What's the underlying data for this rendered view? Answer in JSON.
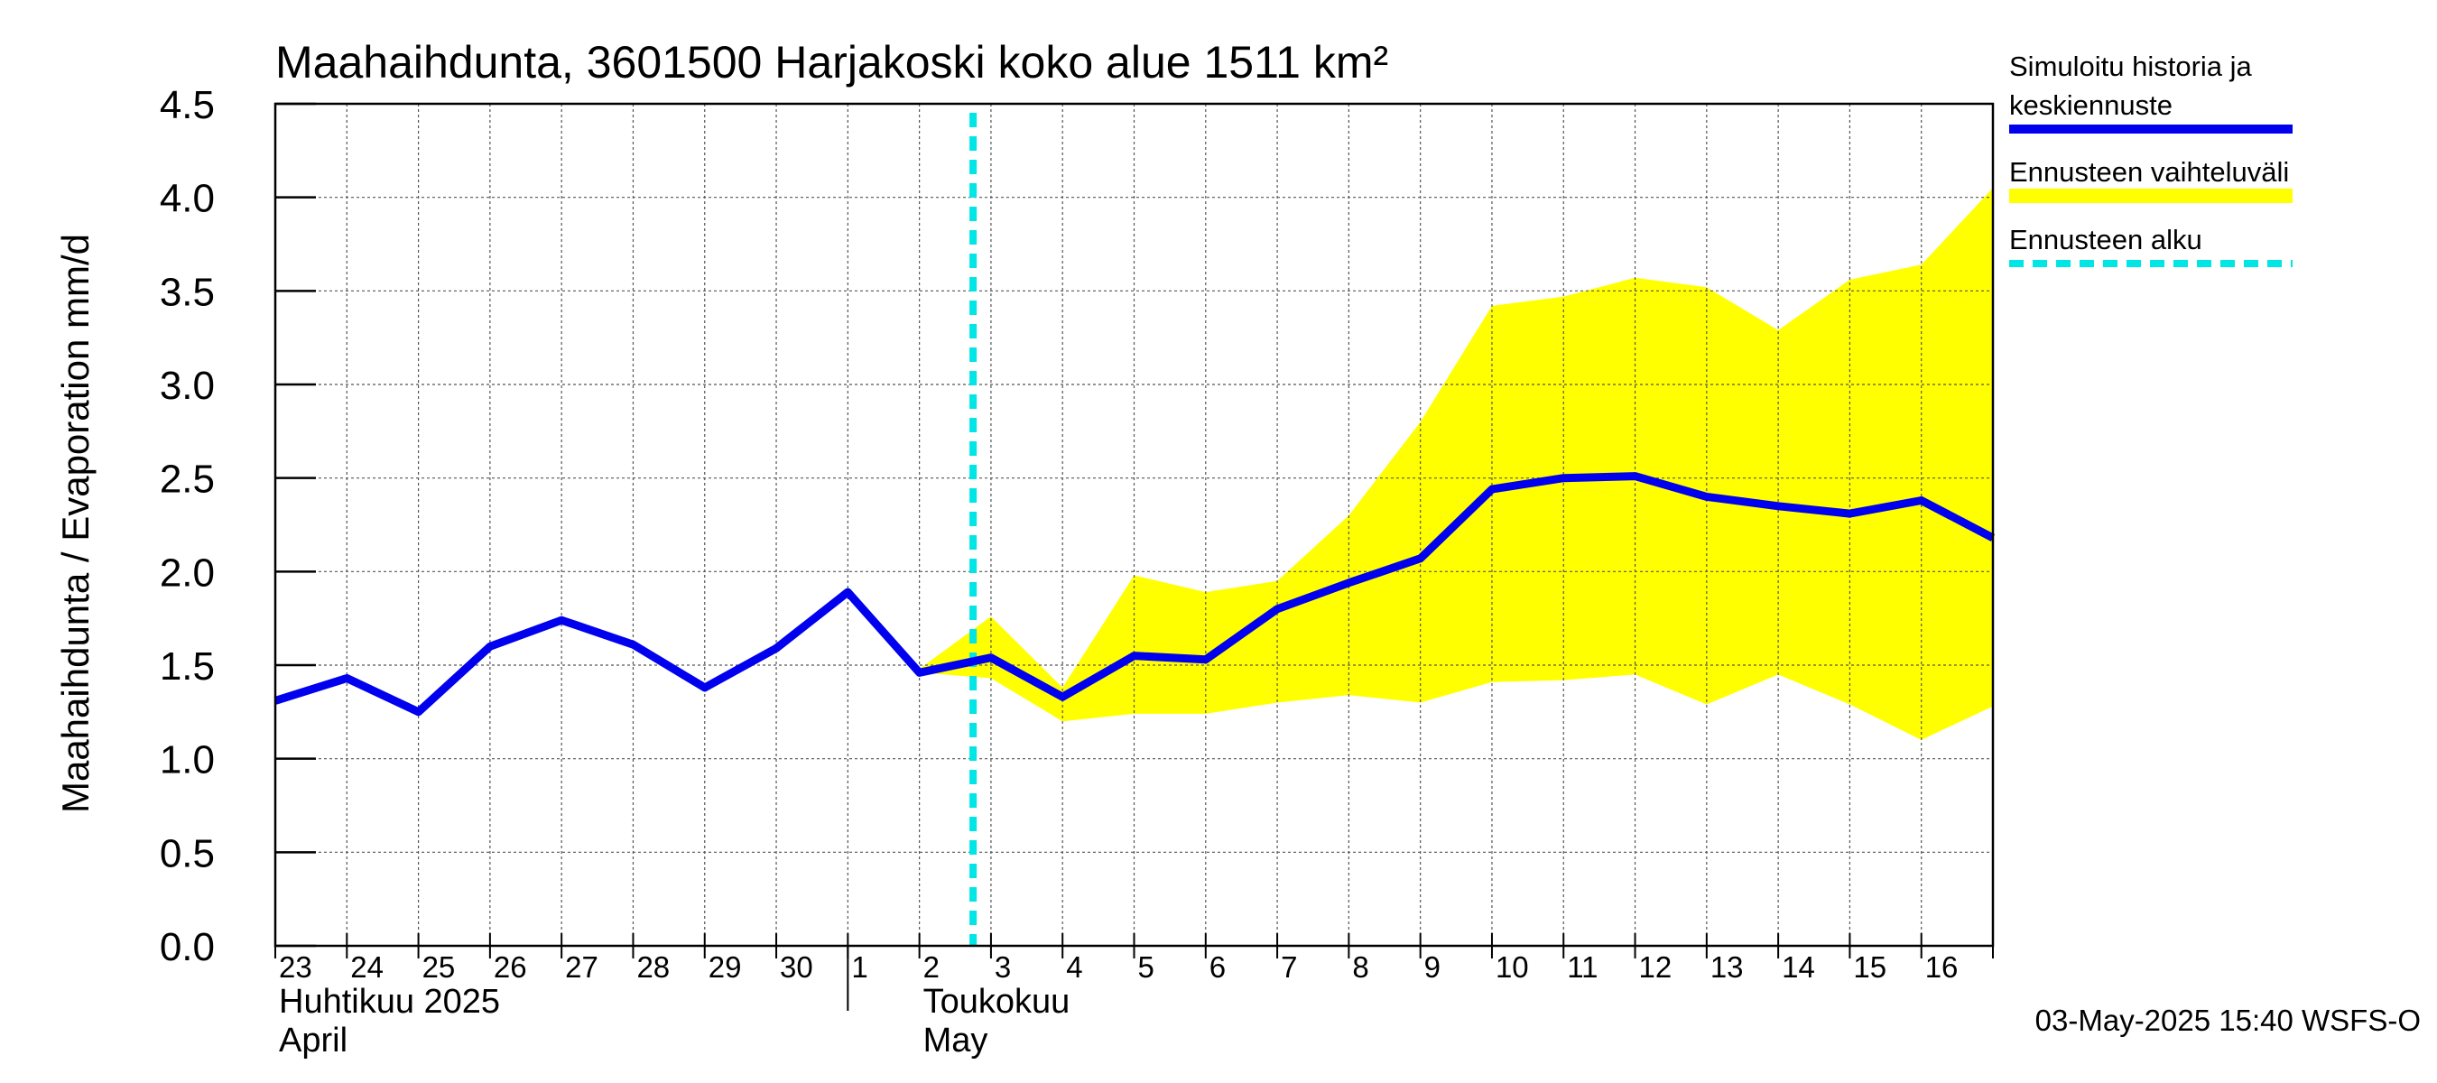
{
  "chart_data": {
    "type": "line",
    "title": "Maahaihdunta, 3601500 Harjakoski koko alue 1511 km²",
    "ylabel": "Maahaihdunta / Evaporation   mm/d",
    "ylim": [
      0,
      4.5
    ],
    "yticks": [
      "0.0",
      "0.5",
      "1.0",
      "1.5",
      "2.0",
      "2.5",
      "3.0",
      "3.5",
      "4.0",
      "4.5"
    ],
    "x_range": [
      "2025-04-23",
      "2025-05-17"
    ],
    "x_tick_labels": [
      "23",
      "24",
      "25",
      "26",
      "27",
      "28",
      "29",
      "30",
      "1",
      "2",
      "3",
      "4",
      "5",
      "6",
      "7",
      "8",
      "9",
      "10",
      "11",
      "12",
      "13",
      "14",
      "15",
      "16"
    ],
    "month_labels": [
      {
        "date": "2025-04-23",
        "line1": "Huhtikuu  2025",
        "line2": "April"
      },
      {
        "date": "2025-05-02",
        "line1": "Toukokuu",
        "line2": "May"
      }
    ],
    "grid": true,
    "legend_position": "right",
    "forecast_start": "2025-05-02T18:00",
    "series": [
      {
        "name": "Simuloitu historia ja keskiennuste",
        "color": "#0000ee",
        "points": [
          [
            "2025-04-23",
            1.31
          ],
          [
            "2025-04-24",
            1.43
          ],
          [
            "2025-04-25",
            1.25
          ],
          [
            "2025-04-26",
            1.6
          ],
          [
            "2025-04-27",
            1.74
          ],
          [
            "2025-04-28",
            1.61
          ],
          [
            "2025-04-29",
            1.38
          ],
          [
            "2025-04-30",
            1.59
          ],
          [
            "2025-05-01",
            1.89
          ],
          [
            "2025-05-02",
            1.46
          ],
          [
            "2025-05-03",
            1.54
          ],
          [
            "2025-05-04",
            1.33
          ],
          [
            "2025-05-05",
            1.55
          ],
          [
            "2025-05-06",
            1.53
          ],
          [
            "2025-05-07",
            1.8
          ],
          [
            "2025-05-08",
            1.94
          ],
          [
            "2025-05-09",
            2.07
          ],
          [
            "2025-05-10",
            2.44
          ],
          [
            "2025-05-11",
            2.5
          ],
          [
            "2025-05-12",
            2.51
          ],
          [
            "2025-05-13",
            2.4
          ],
          [
            "2025-05-14",
            2.35
          ],
          [
            "2025-05-15",
            2.31
          ],
          [
            "2025-05-16",
            2.38
          ],
          [
            "2025-05-17",
            2.18
          ]
        ]
      },
      {
        "name": "Ennusteen vaihteluväli",
        "type": "band",
        "color": "#ffff00",
        "x": [
          "2025-05-02",
          "2025-05-03",
          "2025-05-04",
          "2025-05-05",
          "2025-05-06",
          "2025-05-07",
          "2025-05-08",
          "2025-05-09",
          "2025-05-10",
          "2025-05-11",
          "2025-05-12",
          "2025-05-13",
          "2025-05-14",
          "2025-05-15",
          "2025-05-16",
          "2025-05-17"
        ],
        "upper": [
          1.48,
          1.76,
          1.38,
          1.98,
          1.89,
          1.95,
          2.3,
          2.8,
          3.42,
          3.47,
          3.57,
          3.52,
          3.29,
          3.56,
          3.64,
          4.05
        ],
        "lower": [
          1.46,
          1.43,
          1.2,
          1.24,
          1.24,
          1.3,
          1.34,
          1.3,
          1.41,
          1.42,
          1.45,
          1.29,
          1.45,
          1.29,
          1.1,
          1.28
        ]
      },
      {
        "name": "Ennusteen alku",
        "type": "vline",
        "color": "#00e5e5"
      }
    ]
  },
  "legend": {
    "entries": [
      {
        "line1": "Simuloitu historia ja",
        "line2": "keskiennuste"
      },
      {
        "line1": "Ennusteen vaihteluväli",
        "line2": ""
      },
      {
        "line1": "Ennusteen alku",
        "line2": ""
      }
    ]
  },
  "footer": "03-May-2025 15:40 WSFS-O"
}
